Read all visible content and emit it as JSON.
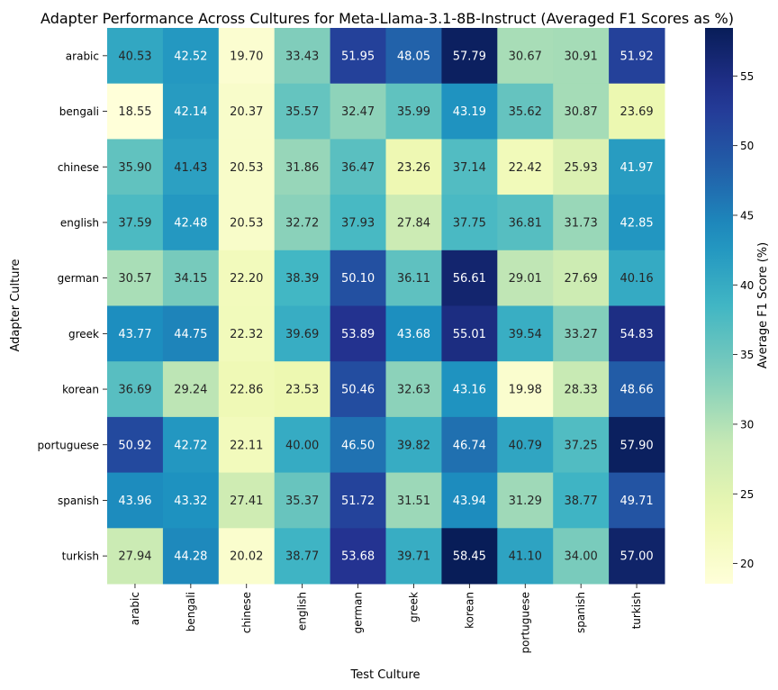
{
  "chart_data": {
    "type": "heatmap",
    "title": "Adapter Performance Across Cultures for Meta-Llama-3.1-8B-Instruct (Averaged F1 Scores as %)",
    "xlabel": "Test Culture",
    "ylabel": "Adapter Culture",
    "colorbar_label": "Average F1 Score (%)",
    "x_categories": [
      "arabic",
      "bengali",
      "chinese",
      "english",
      "german",
      "greek",
      "korean",
      "portuguese",
      "spanish",
      "turkish"
    ],
    "y_categories": [
      "arabic",
      "bengali",
      "chinese",
      "english",
      "german",
      "greek",
      "korean",
      "portuguese",
      "spanish",
      "turkish"
    ],
    "values": [
      [
        40.53,
        42.52,
        19.7,
        33.43,
        51.95,
        48.05,
        57.79,
        30.67,
        30.91,
        51.92
      ],
      [
        18.55,
        42.14,
        20.37,
        35.57,
        32.47,
        35.99,
        43.19,
        35.62,
        30.87,
        23.69
      ],
      [
        35.9,
        41.43,
        20.53,
        31.86,
        36.47,
        23.26,
        37.14,
        22.42,
        25.93,
        41.97
      ],
      [
        37.59,
        42.48,
        20.53,
        32.72,
        37.93,
        27.84,
        37.75,
        36.81,
        31.73,
        42.85
      ],
      [
        30.57,
        34.15,
        22.2,
        38.39,
        50.1,
        36.11,
        56.61,
        29.01,
        27.69,
        40.16
      ],
      [
        43.77,
        44.75,
        22.32,
        39.69,
        53.89,
        43.68,
        55.01,
        39.54,
        33.27,
        54.83
      ],
      [
        36.69,
        29.24,
        22.86,
        23.53,
        50.46,
        32.63,
        43.16,
        19.98,
        28.33,
        48.66
      ],
      [
        50.92,
        42.72,
        22.11,
        40.0,
        46.5,
        39.82,
        46.74,
        40.79,
        37.25,
        57.9
      ],
      [
        43.96,
        43.32,
        27.41,
        35.37,
        51.72,
        31.51,
        43.94,
        31.29,
        38.77,
        49.71
      ],
      [
        27.94,
        44.28,
        20.02,
        38.77,
        53.68,
        39.71,
        58.45,
        41.1,
        34.0,
        57.0
      ]
    ],
    "colorbar_range": [
      18.55,
      58.45
    ],
    "colorbar_ticks": [
      20,
      25,
      30,
      35,
      40,
      45,
      50,
      55
    ],
    "colormap": "YlGnBu",
    "grid": false
  }
}
